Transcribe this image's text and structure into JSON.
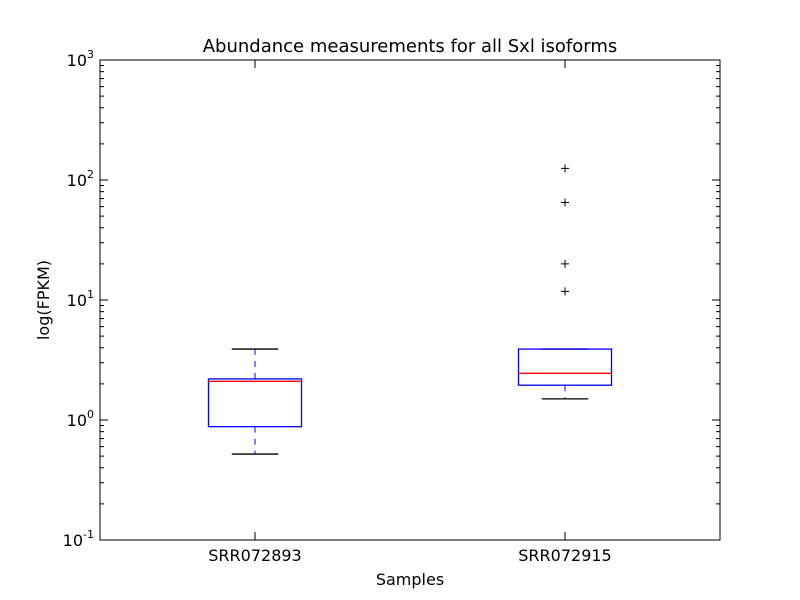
{
  "chart_data": {
    "type": "box",
    "title": "Abundance measurements for all Sxl isoforms",
    "xlabel": "Samples",
    "ylabel": "log(FPKM)",
    "yscale": "log",
    "ylim": [
      0.1,
      1000
    ],
    "y_ticks": [
      {
        "value": 0.1,
        "base": "10",
        "exp": "-1"
      },
      {
        "value": 1,
        "base": "10",
        "exp": "0"
      },
      {
        "value": 10,
        "base": "10",
        "exp": "1"
      },
      {
        "value": 100,
        "base": "10",
        "exp": "2"
      },
      {
        "value": 1000,
        "base": "10",
        "exp": "3"
      }
    ],
    "categories": [
      "SRR072893",
      "SRR072915"
    ],
    "boxes": [
      {
        "category": "SRR072893",
        "whisker_low": 0.52,
        "q1": 0.88,
        "median": 2.1,
        "q3": 2.2,
        "whisker_high": 3.9,
        "outliers": []
      },
      {
        "category": "SRR072915",
        "whisker_low": 1.5,
        "q1": 1.95,
        "median": 2.45,
        "q3": 3.9,
        "whisker_high": 3.9,
        "outliers": [
          11.8,
          20,
          65,
          125
        ]
      }
    ],
    "grid": false,
    "colors": {
      "box": "#0000ff",
      "median": "#ff0000",
      "whisker": "#0000ff",
      "cap": "#000000",
      "outlier": "#000000"
    }
  }
}
